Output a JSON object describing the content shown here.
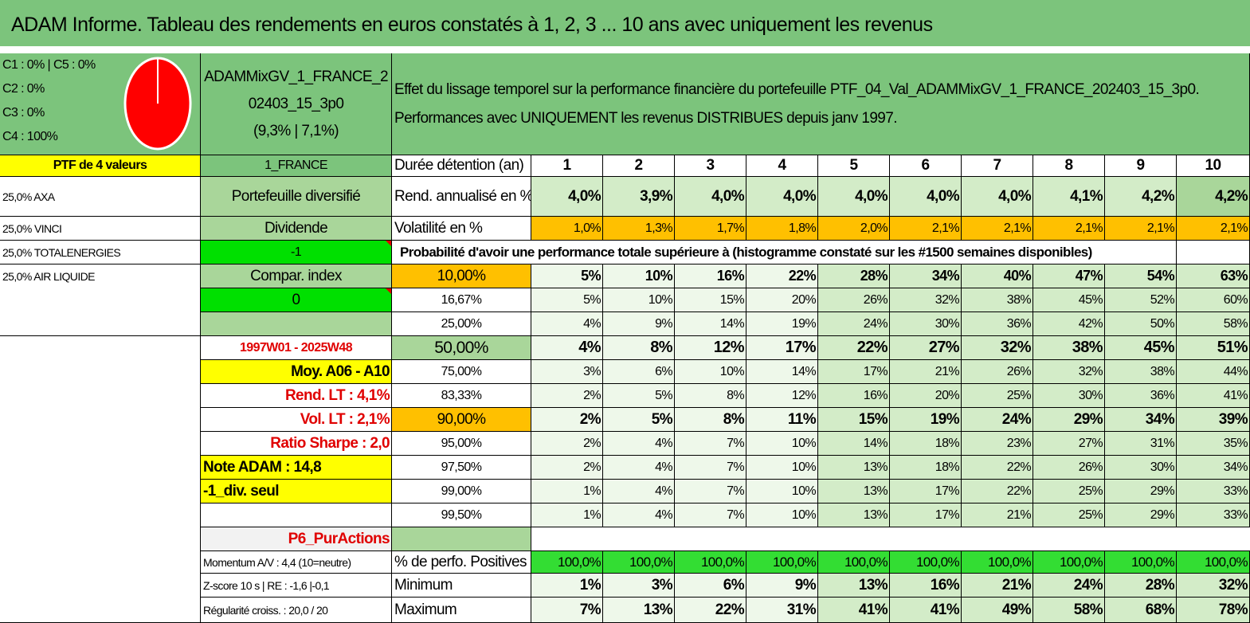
{
  "title": "ADAM Informe. Tableau des rendements en euros constatés à 1, 2, 3 ... 10 ans avec uniquement les revenus",
  "left": {
    "classes": [
      "C1 : 0% | C5 : 0%",
      "C2 : 0%",
      "C3 : 0%",
      "C4 : 100%"
    ],
    "ptf_label": "PTF de 4 valeurs",
    "holdings": [
      "25,0% AXA",
      "25,0% VINCI",
      "25,0% TOTALENERGIES",
      "25,0% AIR LIQUIDE"
    ],
    "pie_color": "#ff0000"
  },
  "mid": {
    "name_line1": "ADAMMixGV_1_FRANCE_2",
    "name_line2": "02403_15_3p0",
    "name_line3": "(9,3% | 7,1%)",
    "region": "1_FRANCE",
    "type": "Portefeuille diversifié",
    "dividend_label": "Dividende",
    "dividend_value": "-1",
    "compar_label": "Compar. index",
    "compar_value": "0",
    "period": "1997W01 - 2025W48",
    "moy": "Moy. A06 - A10",
    "rend_lt": "Rend. LT : 4,1%",
    "vol_lt": "Vol. LT : 2,1%",
    "sharpe": "Ratio Sharpe : 2,0",
    "note": "Note ADAM : 14,8",
    "div_seul": "-1_div. seul",
    "p6": "P6_PurActions",
    "momentum": "Momentum A/V : 4,4 (10=neutre)",
    "zscore": "Z-score 10 s | RE : -1,6 |-0,1",
    "regularite": "Régularité croiss. : 20,0 / 20"
  },
  "header": {
    "effect_line1": "Effet du lissage temporel sur la performance financière du portefeuille PTF_04_Val_ADAMMixGV_1_FRANCE_202403_15_3p0.",
    "effect_line2": "Performances avec UNIQUEMENT les revenus DISTRIBUES depuis janv 1997.",
    "duration_label": "Durée détention (an)",
    "years": [
      "1",
      "2",
      "3",
      "4",
      "5",
      "6",
      "7",
      "8",
      "9",
      "10"
    ]
  },
  "rend": {
    "label": "Rend. annualisé en %",
    "values": [
      "4,0%",
      "3,9%",
      "4,0%",
      "4,0%",
      "4,0%",
      "4,0%",
      "4,0%",
      "4,1%",
      "4,2%",
      "4,2%"
    ]
  },
  "vol": {
    "label": "Volatilité en %",
    "values": [
      "1,0%",
      "1,3%",
      "1,7%",
      "1,8%",
      "2,0%",
      "2,1%",
      "2,1%",
      "2,1%",
      "2,1%",
      "2,1%"
    ]
  },
  "prob_title": "Probabilité d'avoir une performance totale supérieure à (histogramme constaté sur les #1500 semaines disponibles)",
  "prob_rows": [
    {
      "pct": "10,00%",
      "values": [
        "5%",
        "10%",
        "16%",
        "22%",
        "28%",
        "34%",
        "40%",
        "47%",
        "54%",
        "63%"
      ]
    },
    {
      "pct": "16,67%",
      "values": [
        "5%",
        "10%",
        "15%",
        "20%",
        "26%",
        "32%",
        "38%",
        "45%",
        "52%",
        "60%"
      ]
    },
    {
      "pct": "25,00%",
      "values": [
        "4%",
        "9%",
        "14%",
        "19%",
        "24%",
        "30%",
        "36%",
        "42%",
        "50%",
        "58%"
      ]
    },
    {
      "pct": "50,00%",
      "values": [
        "4%",
        "8%",
        "12%",
        "17%",
        "22%",
        "27%",
        "32%",
        "38%",
        "45%",
        "51%"
      ]
    },
    {
      "pct": "75,00%",
      "values": [
        "3%",
        "6%",
        "10%",
        "14%",
        "17%",
        "21%",
        "26%",
        "32%",
        "38%",
        "44%"
      ]
    },
    {
      "pct": "83,33%",
      "values": [
        "2%",
        "5%",
        "8%",
        "12%",
        "16%",
        "20%",
        "25%",
        "30%",
        "36%",
        "41%"
      ]
    },
    {
      "pct": "90,00%",
      "values": [
        "2%",
        "5%",
        "8%",
        "11%",
        "15%",
        "19%",
        "24%",
        "29%",
        "34%",
        "39%"
      ]
    },
    {
      "pct": "95,00%",
      "values": [
        "2%",
        "4%",
        "7%",
        "10%",
        "14%",
        "18%",
        "23%",
        "27%",
        "31%",
        "35%"
      ]
    },
    {
      "pct": "97,50%",
      "values": [
        "2%",
        "4%",
        "7%",
        "10%",
        "13%",
        "18%",
        "22%",
        "26%",
        "30%",
        "34%"
      ]
    },
    {
      "pct": "99,00%",
      "values": [
        "1%",
        "4%",
        "7%",
        "10%",
        "13%",
        "17%",
        "22%",
        "25%",
        "29%",
        "33%"
      ]
    },
    {
      "pct": "99,50%",
      "values": [
        "1%",
        "4%",
        "7%",
        "10%",
        "13%",
        "17%",
        "21%",
        "25%",
        "29%",
        "33%"
      ]
    }
  ],
  "positives": {
    "label": "% de perfo. Positives",
    "values": [
      "100,0%",
      "100,0%",
      "100,0%",
      "100,0%",
      "100,0%",
      "100,0%",
      "100,0%",
      "100,0%",
      "100,0%",
      "100,0%"
    ]
  },
  "minimum": {
    "label": "Minimum",
    "values": [
      "1%",
      "3%",
      "6%",
      "9%",
      "13%",
      "16%",
      "21%",
      "24%",
      "28%",
      "32%"
    ]
  },
  "maximum": {
    "label": "Maximum",
    "values": [
      "7%",
      "13%",
      "22%",
      "31%",
      "41%",
      "41%",
      "49%",
      "58%",
      "68%",
      "78%"
    ]
  }
}
